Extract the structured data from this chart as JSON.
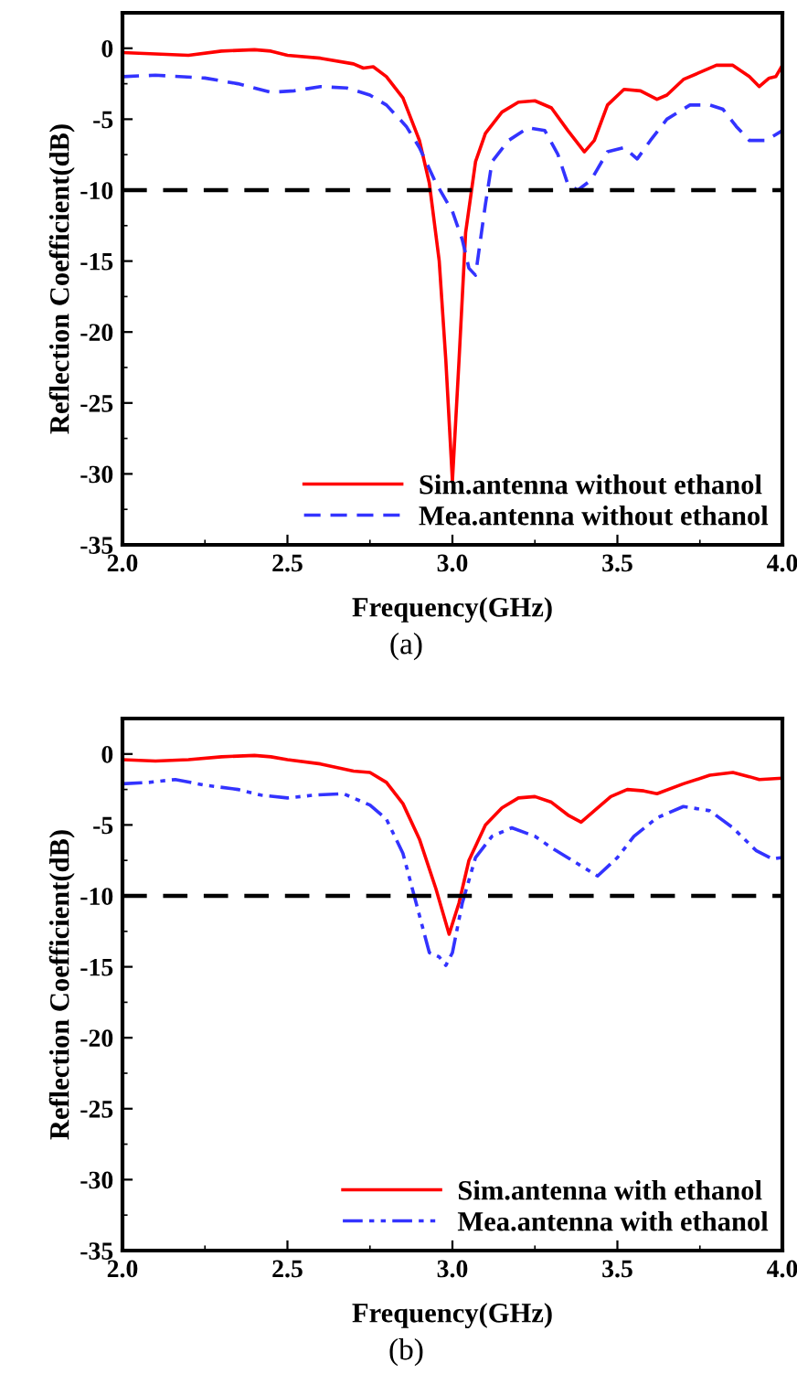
{
  "chart_data": [
    {
      "type": "line",
      "xlabel": "Frequency(GHz)",
      "ylabel": "Reflection Coefficient(dB)",
      "annotations": [
        "(a)"
      ],
      "xlim": [
        2.0,
        4.0
      ],
      "ylim": [
        -35,
        2.5
      ],
      "xticks": [
        {
          "value": 2.0,
          "label": "2.0"
        },
        {
          "value": 2.25,
          "label": null
        },
        {
          "value": 2.5,
          "label": "2.5"
        },
        {
          "value": 2.75,
          "label": null
        },
        {
          "value": 3.0,
          "label": "3.0"
        },
        {
          "value": 3.25,
          "label": null
        },
        {
          "value": 3.5,
          "label": "3.5"
        },
        {
          "value": 3.75,
          "label": null
        },
        {
          "value": 4.0,
          "label": "4.0"
        }
      ],
      "yticks": [
        -35,
        {
          "value": -32.5,
          "label": null
        },
        -30,
        {
          "value": -27.5,
          "label": null
        },
        -25,
        {
          "value": -22.5,
          "label": null
        },
        -20,
        {
          "value": -17.5,
          "label": null
        },
        -15,
        {
          "value": -12.5,
          "label": null
        },
        -10,
        {
          "value": -7.5,
          "label": null
        },
        -5,
        {
          "value": -2.5,
          "label": null
        },
        0
      ],
      "grid": false,
      "legend": "bottom right",
      "ref_lines": [
        {
          "axis": "y",
          "value": -10,
          "color": "#000000",
          "line_style": "dashed"
        }
      ],
      "series": [
        {
          "name": "Sim.antenna without ethanol",
          "color": "#ff0000",
          "line_style": "solid",
          "x": [
            2.0,
            2.1,
            2.2,
            2.3,
            2.4,
            2.45,
            2.5,
            2.6,
            2.7,
            2.73,
            2.76,
            2.8,
            2.85,
            2.9,
            2.93,
            2.96,
            2.98,
            3.0,
            3.02,
            3.04,
            3.07,
            3.1,
            3.15,
            3.2,
            3.25,
            3.3,
            3.35,
            3.4,
            3.43,
            3.47,
            3.52,
            3.57,
            3.62,
            3.65,
            3.7,
            3.75,
            3.8,
            3.85,
            3.9,
            3.93,
            3.96,
            3.98,
            4.0
          ],
          "values": [
            -0.3,
            -0.4,
            -0.5,
            -0.2,
            -0.1,
            -0.2,
            -0.5,
            -0.7,
            -1.1,
            -1.4,
            -1.3,
            -2.0,
            -3.5,
            -6.5,
            -9.5,
            -15,
            -22,
            -30.5,
            -22,
            -13,
            -8,
            -6,
            -4.5,
            -3.8,
            -3.7,
            -4.2,
            -5.8,
            -7.3,
            -6.5,
            -4.0,
            -2.9,
            -3.0,
            -3.6,
            -3.3,
            -2.2,
            -1.7,
            -1.2,
            -1.2,
            -2.0,
            -2.7,
            -2.1,
            -2.0,
            -1.2
          ]
        },
        {
          "name": "Mea.antenna without ethanol",
          "color": "#3333ff",
          "line_style": "dashed",
          "x": [
            2.0,
            2.1,
            2.25,
            2.35,
            2.45,
            2.52,
            2.6,
            2.68,
            2.75,
            2.8,
            2.86,
            2.9,
            2.95,
            3.0,
            3.03,
            3.05,
            3.07,
            3.1,
            3.12,
            3.17,
            3.23,
            3.28,
            3.32,
            3.35,
            3.38,
            3.42,
            3.47,
            3.52,
            3.56,
            3.6,
            3.65,
            3.72,
            3.78,
            3.82,
            3.86,
            3.9,
            3.95,
            4.0
          ],
          "values": [
            -2.0,
            -1.9,
            -2.1,
            -2.5,
            -3.1,
            -3.0,
            -2.7,
            -2.8,
            -3.3,
            -4.0,
            -5.5,
            -7.0,
            -9.5,
            -11.5,
            -13.5,
            -15.5,
            -16,
            -11,
            -8,
            -6.5,
            -5.6,
            -5.8,
            -7.5,
            -9.6,
            -10.0,
            -9.3,
            -7.3,
            -7.0,
            -7.8,
            -6.5,
            -5.0,
            -4.0,
            -4.0,
            -4.3,
            -5.5,
            -6.5,
            -6.5,
            -5.8
          ]
        }
      ]
    },
    {
      "type": "line",
      "xlabel": "Frequency(GHz)",
      "ylabel": "Reflection Coefficient(dB)",
      "annotations": [
        "(b)"
      ],
      "xlim": [
        2.0,
        4.0
      ],
      "ylim": [
        -35,
        2.5
      ],
      "xticks": [
        {
          "value": 2.0,
          "label": "2.0"
        },
        {
          "value": 2.25,
          "label": null
        },
        {
          "value": 2.5,
          "label": "2.5"
        },
        {
          "value": 2.75,
          "label": null
        },
        {
          "value": 3.0,
          "label": "3.0"
        },
        {
          "value": 3.25,
          "label": null
        },
        {
          "value": 3.5,
          "label": "3.5"
        },
        {
          "value": 3.75,
          "label": null
        },
        {
          "value": 4.0,
          "label": "4.0"
        }
      ],
      "yticks": [
        -35,
        {
          "value": -32.5,
          "label": null
        },
        -30,
        {
          "value": -27.5,
          "label": null
        },
        -25,
        {
          "value": -22.5,
          "label": null
        },
        -20,
        {
          "value": -17.5,
          "label": null
        },
        -15,
        {
          "value": -12.5,
          "label": null
        },
        -10,
        {
          "value": -7.5,
          "label": null
        },
        -5,
        {
          "value": -2.5,
          "label": null
        },
        0
      ],
      "grid": false,
      "legend": "bottom right",
      "ref_lines": [
        {
          "axis": "y",
          "value": -10,
          "color": "#000000",
          "line_style": "dashed"
        }
      ],
      "series": [
        {
          "name": "Sim.antenna with ethanol",
          "color": "#ff0000",
          "line_style": "solid",
          "x": [
            2.0,
            2.1,
            2.2,
            2.3,
            2.4,
            2.45,
            2.5,
            2.6,
            2.7,
            2.75,
            2.8,
            2.85,
            2.9,
            2.95,
            2.99,
            3.02,
            3.05,
            3.1,
            3.15,
            3.2,
            3.25,
            3.3,
            3.35,
            3.39,
            3.43,
            3.48,
            3.53,
            3.58,
            3.62,
            3.7,
            3.78,
            3.85,
            3.9,
            3.93,
            4.0
          ],
          "values": [
            -0.4,
            -0.5,
            -0.4,
            -0.2,
            -0.1,
            -0.2,
            -0.4,
            -0.7,
            -1.2,
            -1.3,
            -2.0,
            -3.5,
            -6.0,
            -9.5,
            -12.7,
            -10.5,
            -7.5,
            -5.0,
            -3.8,
            -3.1,
            -3.0,
            -3.4,
            -4.3,
            -4.8,
            -4.0,
            -3.0,
            -2.5,
            -2.6,
            -2.8,
            -2.1,
            -1.5,
            -1.3,
            -1.6,
            -1.8,
            -1.7
          ]
        },
        {
          "name": "Mea.antenna with ethanol",
          "color": "#3333ff",
          "line_style": "dashdotdot",
          "x": [
            2.0,
            2.08,
            2.16,
            2.25,
            2.35,
            2.42,
            2.5,
            2.58,
            2.67,
            2.75,
            2.8,
            2.85,
            2.89,
            2.93,
            2.96,
            2.98,
            3.0,
            3.03,
            3.07,
            3.12,
            3.18,
            3.25,
            3.3,
            3.37,
            3.44,
            3.5,
            3.55,
            3.62,
            3.7,
            3.78,
            3.85,
            3.92,
            3.97,
            4.0
          ],
          "values": [
            -2.1,
            -2.0,
            -1.8,
            -2.2,
            -2.5,
            -2.9,
            -3.1,
            -2.9,
            -2.8,
            -3.6,
            -4.6,
            -7.0,
            -10.5,
            -14.0,
            -14.3,
            -14.9,
            -14.0,
            -10.5,
            -7.3,
            -5.8,
            -5.2,
            -5.8,
            -6.6,
            -7.6,
            -8.6,
            -7.3,
            -5.8,
            -4.5,
            -3.7,
            -4.0,
            -5.2,
            -6.8,
            -7.4,
            -7.3
          ]
        }
      ]
    }
  ]
}
